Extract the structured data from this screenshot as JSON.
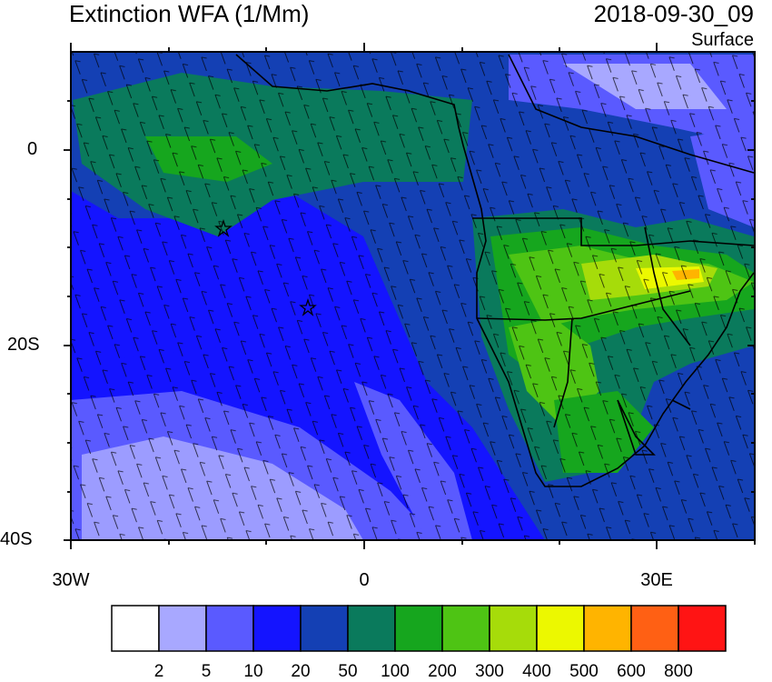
{
  "header": {
    "title": "Extinction WFA (1/Mm)",
    "datetime": "2018-09-30_09",
    "level": "Surface"
  },
  "axes": {
    "y_ticks": [
      "0",
      "20S",
      "40S"
    ],
    "x_ticks": [
      "30W",
      "0",
      "30E"
    ]
  },
  "colorbar": {
    "labels": [
      "2",
      "5",
      "10",
      "20",
      "50",
      "100",
      "200",
      "300",
      "400",
      "500",
      "600",
      "800"
    ],
    "colors": [
      "#ffffff",
      "#a8a8ff",
      "#5a5aff",
      "#1414ff",
      "#1440b4",
      "#0a7a5c",
      "#16a61e",
      "#4ec414",
      "#a6dc0a",
      "#ecf800",
      "#ffb400",
      "#ff6014",
      "#ff1414"
    ]
  },
  "markers": {
    "star_icon": "star-icon"
  }
}
